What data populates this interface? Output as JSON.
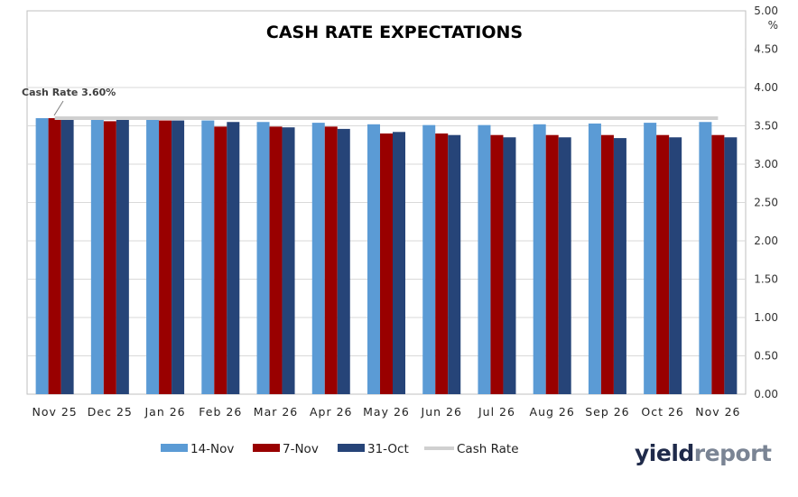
{
  "chart_data": {
    "type": "bar",
    "title": "CASH RATE EXPECTATIONS",
    "xlabel": "",
    "ylabel": "%",
    "ylim": [
      0,
      5
    ],
    "yticks": [
      "0.00",
      "0.50",
      "1.00",
      "1.50",
      "2.00",
      "2.50",
      "3.00",
      "3.50",
      "4.00",
      "4.50",
      "5.00"
    ],
    "grid": true,
    "legend_position": "bottom",
    "categories": [
      "Nov 25",
      "Dec 25",
      "Jan 26",
      "Feb 26",
      "Mar 26",
      "Apr 26",
      "May 26",
      "Jun 26",
      "Jul 26",
      "Aug 26",
      "Sep 26",
      "Oct 26",
      "Nov 26"
    ],
    "series": [
      {
        "name": "14-Nov",
        "color": "#5B9BD5",
        "values": [
          3.6,
          3.58,
          3.58,
          3.57,
          3.55,
          3.54,
          3.52,
          3.51,
          3.51,
          3.52,
          3.53,
          3.54,
          3.55
        ]
      },
      {
        "name": "7-Nov",
        "color": "#990000",
        "values": [
          3.6,
          3.56,
          3.57,
          3.49,
          3.49,
          3.49,
          3.4,
          3.4,
          3.38,
          3.38,
          3.38,
          3.38,
          3.38
        ]
      },
      {
        "name": "31-Oct",
        "color": "#264478",
        "values": [
          3.58,
          3.58,
          3.57,
          3.55,
          3.48,
          3.46,
          3.42,
          3.38,
          3.35,
          3.35,
          3.34,
          3.35,
          3.35
        ]
      }
    ],
    "reference_line": {
      "name": "Cash Rate",
      "value": 3.6,
      "color": "#D0D0D0"
    },
    "annotation": "Cash Rate 3.60%"
  },
  "branding": {
    "part1": "yield",
    "part2": "report"
  }
}
